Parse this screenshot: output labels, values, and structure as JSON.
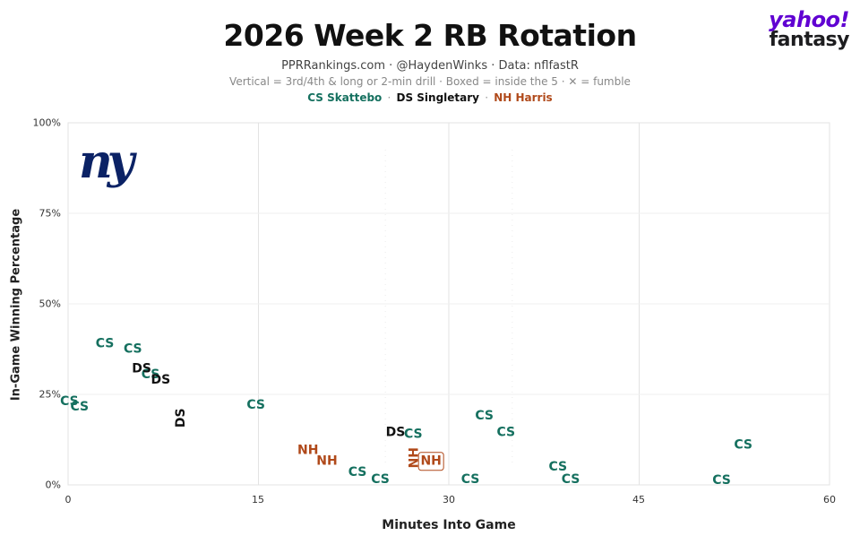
{
  "header": {
    "title": "2026 Week 2 RB Rotation",
    "subtitle": "PPRRankings.com · @HaydenWinks · Data: nflfastR",
    "subtitle2": "Vertical = 3rd/4th & long or 2-min drill · Boxed = inside the 5 · ✕ = fumble",
    "legend": [
      {
        "label": "CS Skattebo",
        "color": "#15705f"
      },
      {
        "label": "DS Singletary",
        "color": "#111111"
      },
      {
        "label": "NH Harris",
        "color": "#b0491a"
      }
    ],
    "legend_sep": "·"
  },
  "brand": {
    "top": "yahoo!",
    "bottom": "fantasy"
  },
  "logo": {
    "text": "ny",
    "icon": "giants-logo-icon"
  },
  "chart_data": {
    "type": "scatter",
    "xlabel": "Minutes Into Game",
    "ylabel": "In-Game Winning Percentage",
    "xlim": [
      0,
      60
    ],
    "ylim": [
      0,
      100
    ],
    "xticks": [
      "0",
      "15",
      "30",
      "45",
      "60"
    ],
    "yticks": [
      "0%",
      "25%",
      "50%",
      "75%",
      "100%"
    ],
    "grid": true,
    "series": [
      {
        "name": "CS Skattebo",
        "color": "#15705f",
        "points": [
          {
            "x": 0.1,
            "y": 23,
            "label": "CS"
          },
          {
            "x": 0.9,
            "y": 21.5,
            "label": "CS"
          },
          {
            "x": 2.9,
            "y": 39,
            "label": "CS"
          },
          {
            "x": 5.1,
            "y": 37.5,
            "label": "CS"
          },
          {
            "x": 6.5,
            "y": 30.5,
            "label": "CS"
          },
          {
            "x": 14.8,
            "y": 22,
            "label": "CS"
          },
          {
            "x": 22.8,
            "y": 3.5,
            "label": "CS"
          },
          {
            "x": 24.6,
            "y": 1.5,
            "label": "CS"
          },
          {
            "x": 27.2,
            "y": 14,
            "label": "CS"
          },
          {
            "x": 31.7,
            "y": 1.5,
            "label": "CS"
          },
          {
            "x": 32.8,
            "y": 19,
            "label": "CS"
          },
          {
            "x": 34.5,
            "y": 14.5,
            "label": "CS"
          },
          {
            "x": 38.6,
            "y": 5,
            "label": "CS"
          },
          {
            "x": 39.6,
            "y": 1.5,
            "label": "CS"
          },
          {
            "x": 51.5,
            "y": 1.2,
            "label": "CS"
          },
          {
            "x": 53.2,
            "y": 11,
            "label": "CS"
          }
        ]
      },
      {
        "name": "DS Singletary",
        "color": "#111111",
        "points": [
          {
            "x": 5.8,
            "y": 32,
            "label": "DS"
          },
          {
            "x": 7.3,
            "y": 29,
            "label": "DS"
          },
          {
            "x": 8.9,
            "y": 18.5,
            "label": "DS",
            "vertical": true
          },
          {
            "x": 25.8,
            "y": 14.5,
            "label": "DS"
          }
        ]
      },
      {
        "name": "NH Harris",
        "color": "#b0491a",
        "points": [
          {
            "x": 18.9,
            "y": 9.5,
            "label": "NH"
          },
          {
            "x": 20.4,
            "y": 6.5,
            "label": "NH"
          },
          {
            "x": 27.3,
            "y": 7.5,
            "label": "NH",
            "vertical": true
          },
          {
            "x": 28.6,
            "y": 6.5,
            "label": "NH",
            "boxed": true
          }
        ]
      }
    ]
  }
}
